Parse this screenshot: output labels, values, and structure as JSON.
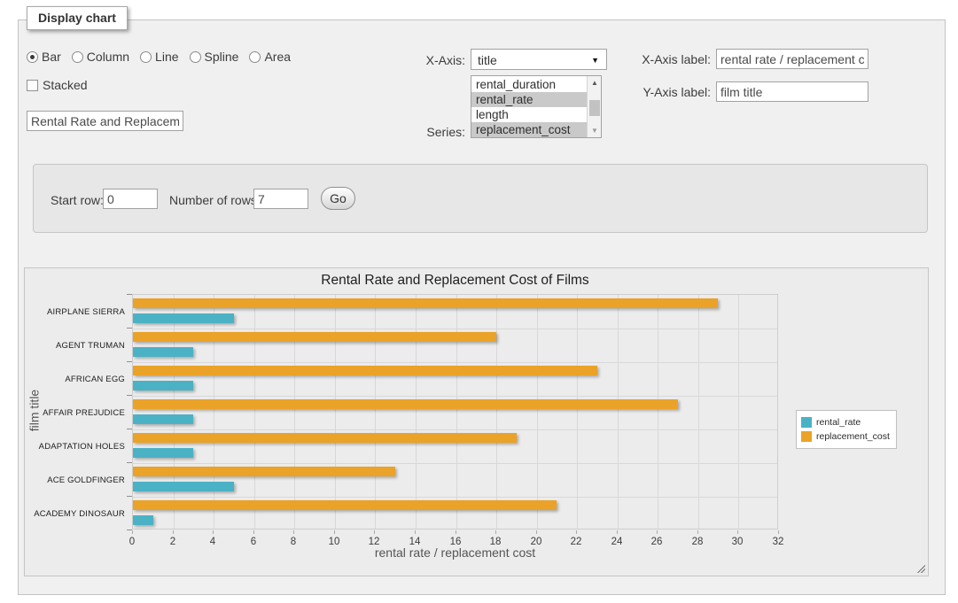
{
  "window": {
    "legend": "Display chart"
  },
  "chart_type": {
    "options": [
      {
        "label": "Bar",
        "selected": true
      },
      {
        "label": "Column",
        "selected": false
      },
      {
        "label": "Line",
        "selected": false
      },
      {
        "label": "Spline",
        "selected": false
      },
      {
        "label": "Area",
        "selected": false
      }
    ]
  },
  "stacked": {
    "label": "Stacked",
    "checked": false
  },
  "title_input": {
    "value": "Rental Rate and Replacement Cost of Films"
  },
  "x_axis_select": {
    "label": "X-Axis:",
    "selected": "title"
  },
  "series_select": {
    "label": "Series:",
    "options": [
      {
        "label": "rental_duration",
        "selected": false
      },
      {
        "label": "rental_rate",
        "selected": true
      },
      {
        "label": "length",
        "selected": false
      },
      {
        "label": "replacement_cost",
        "selected": true
      }
    ]
  },
  "x_axis_label_field": {
    "label": "X-Axis label:",
    "value": "rental rate / replacement cost"
  },
  "y_axis_label_field": {
    "label": "Y-Axis label:",
    "value": "film title"
  },
  "rows_panel": {
    "start_row_label": "Start row:",
    "start_row_value": "0",
    "num_rows_label": "Number of rows:",
    "num_rows_value": "7",
    "go_label": "Go"
  },
  "chart_data": {
    "type": "bar",
    "orientation": "horizontal",
    "title": "Rental Rate and Replacement Cost of Films",
    "xlabel": "rental rate / replacement cost",
    "ylabel": "film title",
    "categories": [
      "AIRPLANE SIERRA",
      "AGENT TRUMAN",
      "AFRICAN EGG",
      "AFFAIR PREJUDICE",
      "ADAPTATION HOLES",
      "ACE GOLDFINGER",
      "ACADEMY DINOSAUR"
    ],
    "series": [
      {
        "name": "rental_rate",
        "color": "#4bb2c5",
        "values": [
          4.99,
          2.99,
          2.99,
          2.99,
          2.99,
          4.99,
          0.99
        ]
      },
      {
        "name": "replacement_cost",
        "color": "#eaa228",
        "values": [
          28.99,
          17.99,
          22.99,
          26.99,
          18.99,
          12.99,
          20.99
        ]
      }
    ],
    "xlim": [
      0,
      32
    ],
    "xtick_step": 2,
    "grid": true,
    "legend_position": "right"
  }
}
